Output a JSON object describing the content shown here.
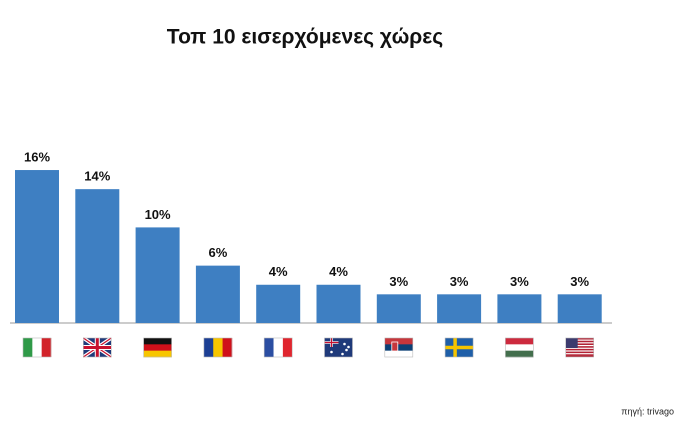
{
  "chart_data": {
    "type": "bar",
    "title": "Τοπ 10 εισερχόμενες χώρες",
    "categories": [
      null,
      null,
      null,
      null,
      null,
      null,
      null,
      null,
      null,
      null
    ],
    "values": [
      16,
      14,
      10,
      6,
      4,
      4,
      3,
      3,
      3,
      3
    ],
    "value_labels": [
      "16%",
      "14%",
      "10%",
      "6%",
      "4%",
      "4%",
      "3%",
      "3%",
      "3%",
      "3%"
    ],
    "color": "#3e7fc2",
    "source": "πηγή: trivago"
  }
}
